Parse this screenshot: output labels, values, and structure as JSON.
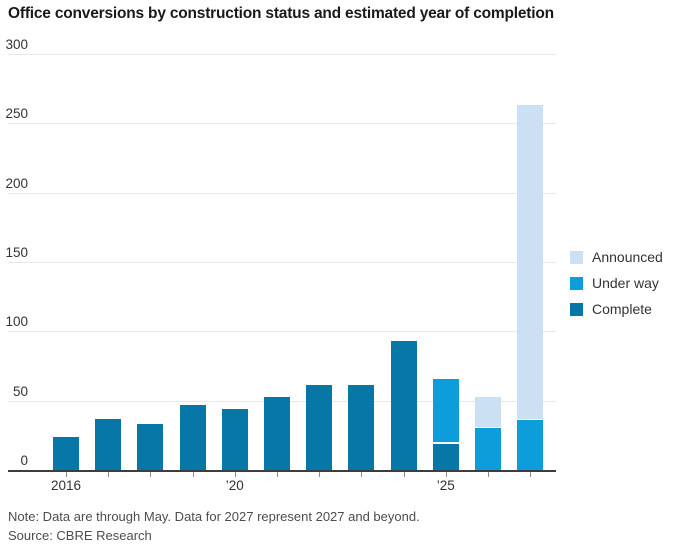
{
  "title": "Office conversions by construction status and estimated year of completion",
  "note": "Note: Data are through May. Data for 2027 represent 2027 and beyond.",
  "source": "Source: CBRE Research",
  "colors": {
    "complete": "#0677a7",
    "under_way": "#0d9dda",
    "announced": "#cce0f4",
    "gridline": "#e7e7e7",
    "axis_line": "#3d3d3d",
    "axis_text": "#333333",
    "title_text": "#1a1a1a",
    "note_text": "#4d4d4d"
  },
  "legend_items": [
    {
      "label": "Announced",
      "color": "#cce0f4"
    },
    {
      "label": "Under way",
      "color": "#0d9dda"
    },
    {
      "label": "Complete",
      "color": "#0677a7"
    }
  ],
  "chart_data": {
    "type": "bar",
    "stacked": true,
    "title": "Office conversions by construction status and estimated year of completion",
    "categories": [
      "2016",
      "2017",
      "2018",
      "2019",
      "2020",
      "2021",
      "2022",
      "2023",
      "2024",
      "2025",
      "2026",
      "2027"
    ],
    "series": [
      {
        "name": "Complete",
        "color": "#0677a7",
        "values": [
          24,
          37,
          33,
          47,
          44,
          53,
          61,
          61,
          93,
          19,
          0,
          0
        ]
      },
      {
        "name": "Under way",
        "color": "#0d9dda",
        "values": [
          0,
          0,
          0,
          0,
          0,
          0,
          0,
          0,
          0,
          47,
          30,
          36
        ]
      },
      {
        "name": "Announced",
        "color": "#cce0f4",
        "values": [
          0,
          0,
          0,
          0,
          0,
          0,
          0,
          0,
          0,
          0,
          23,
          227
        ]
      }
    ],
    "totals": [
      24,
      37,
      33,
      47,
      44,
      53,
      61,
      61,
      93,
      66,
      53,
      263
    ],
    "ylim": [
      0,
      300
    ],
    "yticks": [
      0,
      50,
      100,
      150,
      200,
      250,
      300
    ],
    "xtick_labels": [
      {
        "index": 0,
        "text": "2016"
      },
      {
        "index": 4,
        "text": "’20"
      },
      {
        "index": 9,
        "text": "’25"
      }
    ],
    "legend_position": "right",
    "grid": true
  }
}
